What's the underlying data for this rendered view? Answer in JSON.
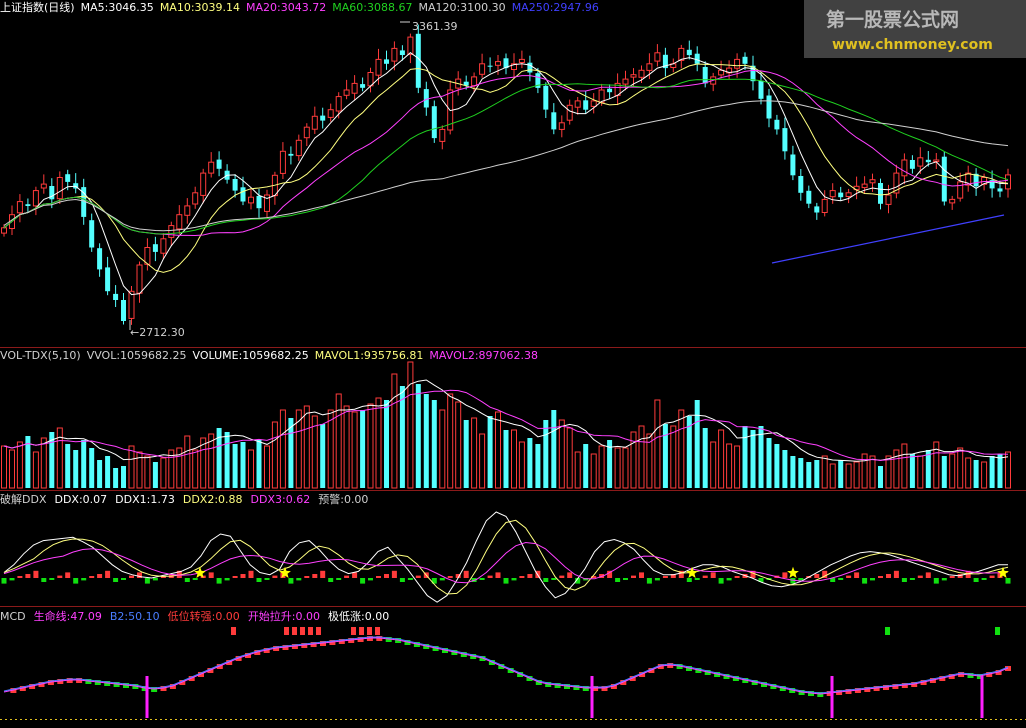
{
  "colors": {
    "up": "#ff3b3b",
    "down": "#54ffff",
    "ma5": "#ffffff",
    "ma10": "#ffff80",
    "ma20": "#ff40ff",
    "ma60": "#20d020",
    "ma120": "#d0d0d0",
    "ma250": "#4040ff",
    "divider": "#8b1a1a",
    "green": "#10e010"
  },
  "panels": {
    "price": {
      "legend": [
        {
          "text": "上证指数(日线)",
          "color": "#ffffff"
        },
        {
          "text": "MA5:3046.35",
          "color": "#ffffff"
        },
        {
          "text": "MA10:3039.14",
          "color": "#ffff80"
        },
        {
          "text": "MA20:3043.72",
          "color": "#ff40ff"
        },
        {
          "text": "MA60:3088.67",
          "color": "#20d020"
        },
        {
          "text": "MA120:3100.30",
          "color": "#d0d0d0"
        },
        {
          "text": "MA250:2947.96",
          "color": "#4040ff"
        }
      ],
      "high_label": "3361.39",
      "low_label": "←2712.30"
    },
    "volume": {
      "legend": [
        {
          "text": "VOL-TDX(5,10)",
          "color": "#d0d0d0"
        },
        {
          "text": "VVOL:1059682.25",
          "color": "#d0d0d0"
        },
        {
          "text": "VOLUME:1059682.25",
          "color": "#ffffff"
        },
        {
          "text": "MAVOL1:935756.81",
          "color": "#ffff80"
        },
        {
          "text": "MAVOL2:897062.38",
          "color": "#ff40ff"
        }
      ]
    },
    "ddx": {
      "legend": [
        {
          "text": "破解DDX",
          "color": "#d0d0d0"
        },
        {
          "text": "DDX:0.07",
          "color": "#ffffff"
        },
        {
          "text": "DDX1:1.73",
          "color": "#ffffff"
        },
        {
          "text": "DDX2:0.88",
          "color": "#ffff80"
        },
        {
          "text": "DDX3:0.62",
          "color": "#ff40ff"
        },
        {
          "text": "预警:0.00",
          "color": "#d0d0d0"
        }
      ]
    },
    "mcd": {
      "legend": [
        {
          "text": "MCD",
          "color": "#d0d0d0"
        },
        {
          "text": "生命线:47.09",
          "color": "#ff40ff"
        },
        {
          "text": "B2:50.10",
          "color": "#4a7dff"
        },
        {
          "text": "低位转强:0.00",
          "color": "#ff3b3b"
        },
        {
          "text": "开始拉升:0.00",
          "color": "#ff40ff"
        },
        {
          "text": "极低涨:0.00",
          "color": "#ffffff"
        }
      ]
    }
  },
  "watermark": {
    "line1": "第一股票公式网",
    "line2": "www.chnmoney.com"
  },
  "chart_data": {
    "type": "candlestick",
    "y_range": [
      2680,
      3400
    ],
    "closes": [
      2925,
      2955,
      2985,
      2975,
      3010,
      3025,
      2990,
      3040,
      3030,
      3015,
      2950,
      2880,
      2830,
      2780,
      2760,
      2712,
      2780,
      2840,
      2880,
      2870,
      2900,
      2930,
      2955,
      2975,
      3005,
      3050,
      3075,
      3060,
      3035,
      3010,
      2985,
      2995,
      2970,
      3000,
      3045,
      3100,
      3090,
      3125,
      3155,
      3180,
      3170,
      3195,
      3225,
      3240,
      3255,
      3245,
      3280,
      3310,
      3300,
      3335,
      3320,
      3361,
      3245,
      3200,
      3130,
      3150,
      3240,
      3265,
      3250,
      3270,
      3300,
      3295,
      3305,
      3290,
      3300,
      3310,
      3280,
      3245,
      3195,
      3150,
      3165,
      3205,
      3215,
      3195,
      3215,
      3240,
      3235,
      3255,
      3265,
      3275,
      3285,
      3300,
      3325,
      3290,
      3300,
      3335,
      3320,
      3300,
      3255,
      3270,
      3285,
      3290,
      3310,
      3300,
      3260,
      3220,
      3175,
      3150,
      3100,
      3045,
      3005,
      2980,
      2960,
      2990,
      3010,
      2995,
      3005,
      3020,
      3025,
      3035,
      2980,
      3000,
      3050,
      3080,
      3060,
      3085,
      3075,
      3080,
      2985,
      2990,
      3030,
      3050,
      3020,
      3040,
      3015,
      3008,
      3046
    ],
    "volumes": [
      2.1,
      1.9,
      2.3,
      2.6,
      1.8,
      2.5,
      2.8,
      3.0,
      2.2,
      1.9,
      2.4,
      2.0,
      1.4,
      1.6,
      1.0,
      1.1,
      2.1,
      1.8,
      1.6,
      1.3,
      1.5,
      1.9,
      2.0,
      2.6,
      1.9,
      2.5,
      2.7,
      3.0,
      2.8,
      2.2,
      2.3,
      1.9,
      2.4,
      2.1,
      3.3,
      3.9,
      3.5,
      3.9,
      4.1,
      3.6,
      3.2,
      3.9,
      4.7,
      4.1,
      3.8,
      3.9,
      4.2,
      4.5,
      4.4,
      5.7,
      5.1,
      6.3,
      5.2,
      4.7,
      4.4,
      3.9,
      4.7,
      4.3,
      3.4,
      3.5,
      2.7,
      3.6,
      3.8,
      2.9,
      2.9,
      2.3,
      2.5,
      2.2,
      3.4,
      3.9,
      3.4,
      3.0,
      1.8,
      2.2,
      1.7,
      2.1,
      2.4,
      2.0,
      2.0,
      2.8,
      3.1,
      2.7,
      4.4,
      3.2,
      3.1,
      3.9,
      3.6,
      4.4,
      3.0,
      2.3,
      2.9,
      2.2,
      2.1,
      3.1,
      2.9,
      3.1,
      2.5,
      2.2,
      1.9,
      1.6,
      1.5,
      1.3,
      1.4,
      1.6,
      1.2,
      1.4,
      1.2,
      1.3,
      1.7,
      1.6,
      1.1,
      1.6,
      1.9,
      2.2,
      1.7,
      1.6,
      1.9,
      2.3,
      1.6,
      1.7,
      2.0,
      1.5,
      1.4,
      1.3,
      1.6,
      1.7,
      1.8
    ],
    "ddx_lines": {
      "ddx1": [
        0.5,
        1.2,
        2.2,
        3.0,
        3.4,
        3.5,
        3.6,
        3.7,
        3.3,
        2.8,
        2.0,
        1.2,
        0.6,
        0.3,
        0.1,
        0.0,
        0.2,
        0.4,
        0.6,
        1.0,
        2.0,
        3.4,
        4.0,
        3.8,
        2.5,
        1.2,
        0.5,
        0.3,
        0.8,
        2.4,
        3.2,
        3.4,
        2.6,
        1.6,
        0.8,
        0.4,
        0.6,
        1.4,
        2.4,
        2.8,
        1.8,
        0.8,
        -0.4,
        -1.6,
        -2.2,
        -1.6,
        -0.2,
        1.4,
        3.4,
        5.2,
        6.0,
        5.6,
        4.2,
        2.4,
        0.6,
        -0.8,
        -1.8,
        -1.4,
        -0.4,
        0.8,
        2.4,
        3.3,
        3.5,
        3.2,
        2.6,
        1.6,
        0.7,
        0.3,
        0.3,
        0.5,
        0.9,
        1.2,
        1.2,
        1.0,
        0.6,
        0.3,
        0.0,
        -0.4,
        -0.7,
        -0.8,
        -0.6,
        -0.3,
        0.2,
        0.7,
        1.2,
        1.6,
        2.0,
        2.3,
        2.4,
        2.3,
        2.1,
        1.8,
        1.5,
        1.2,
        0.9,
        0.6,
        0.3,
        0.2,
        0.4,
        0.6,
        0.9,
        1.2,
        1.2
      ]
    },
    "mcd_life": [
      18,
      20,
      22,
      24,
      26,
      28,
      29,
      30,
      30,
      29,
      28,
      27,
      26,
      25,
      24,
      22,
      21,
      22,
      24,
      28,
      32,
      36,
      40,
      44,
      48,
      52,
      55,
      58,
      60,
      62,
      63,
      64,
      65,
      66,
      67,
      68,
      69,
      70,
      71,
      72,
      72,
      71,
      70,
      68,
      66,
      64,
      62,
      60,
      58,
      56,
      54,
      52,
      48,
      44,
      40,
      36,
      32,
      28,
      26,
      25,
      24,
      23,
      22,
      22,
      22,
      24,
      28,
      32,
      36,
      40,
      44,
      45,
      44,
      42,
      40,
      38,
      36,
      34,
      32,
      30,
      28,
      26,
      24,
      22,
      20,
      18,
      17,
      16,
      17,
      18,
      19,
      20,
      21,
      22,
      23,
      24,
      25,
      26,
      28,
      30,
      32,
      34,
      36,
      35,
      34,
      36,
      38,
      42
    ]
  }
}
